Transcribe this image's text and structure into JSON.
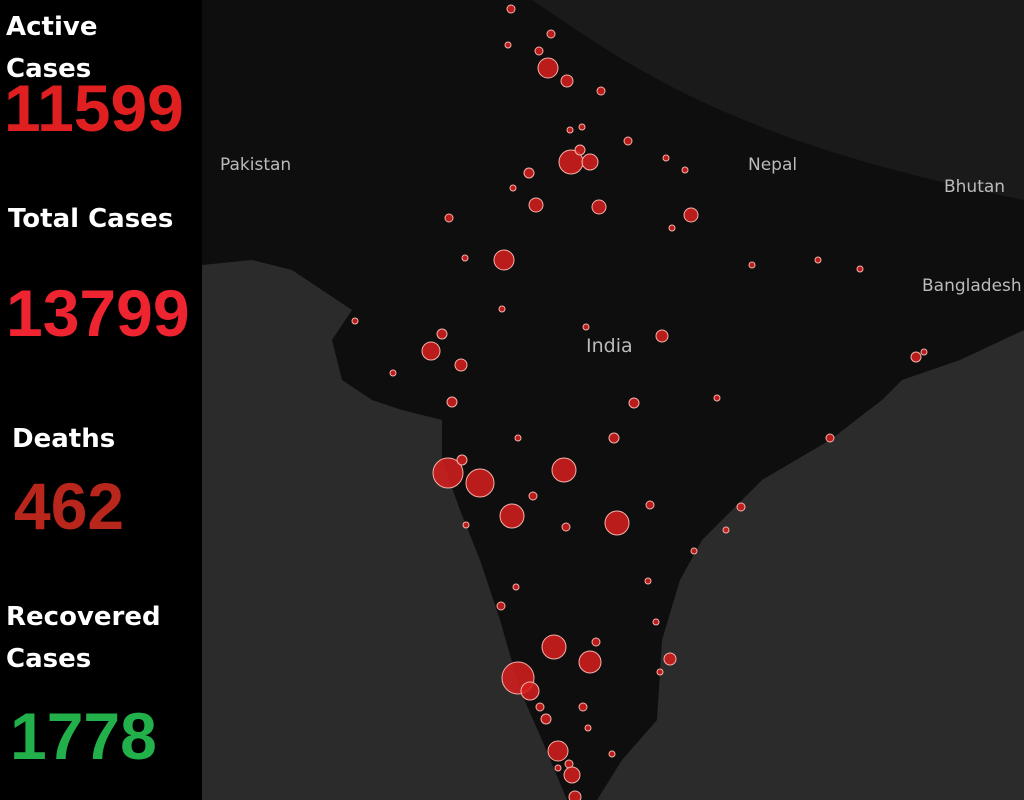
{
  "stats": [
    {
      "label": "Active Cases",
      "value": 11599
    },
    {
      "label": "Total Cases",
      "value": 13799
    },
    {
      "label": "Deaths",
      "value": 462
    },
    {
      "label": "Recovered Cases",
      "value": 1778
    }
  ],
  "map": {
    "labels": [
      "Pakistan",
      "Nepal",
      "Bhutan",
      "Bangladesh",
      "India"
    ]
  }
}
